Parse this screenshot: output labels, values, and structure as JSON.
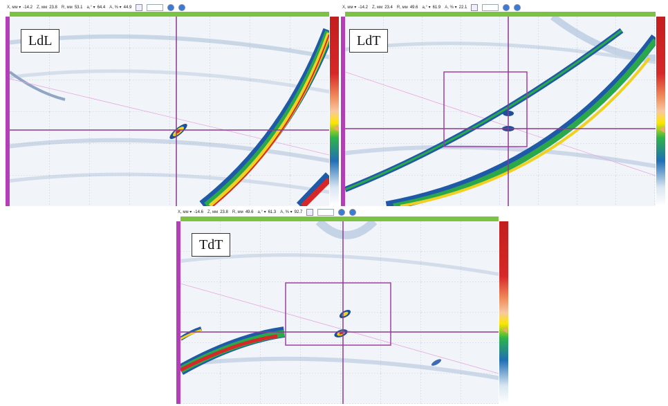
{
  "panels": [
    {
      "id": "ldl",
      "label": "LdL",
      "toolbar": {
        "x_label": "X, мм ▾",
        "x_val": "-14.2",
        "z_label": "Z, мм",
        "z_val": "23.8",
        "r_label": "R, мм",
        "r_val": "53.1",
        "a_label": "a,° ▾",
        "a_val": "64.4",
        "amp_label": "A, % ▾",
        "amp_val": "44.9"
      }
    },
    {
      "id": "ldt",
      "label": "LdT",
      "toolbar": {
        "x_label": "X, мм ▾",
        "x_val": "-14.2",
        "z_label": "Z, мм",
        "z_val": "23.4",
        "r_label": "R, мм",
        "r_val": "49.6",
        "a_label": "a,° ▾",
        "a_val": "61.9",
        "amp_label": "A, % ▾",
        "amp_val": "22.1"
      }
    },
    {
      "id": "tdt",
      "label": "TdT",
      "toolbar": {
        "x_label": "X, мм ▾",
        "x_val": "-14.6",
        "z_label": "Z, мм",
        "z_val": "23.8",
        "r_label": "R, мм",
        "r_val": "49.6",
        "a_label": "a,° ▾",
        "a_val": "61.3",
        "amp_label": "A, % ▾",
        "amp_val": "92.7"
      }
    }
  ],
  "colors": {
    "cursor": "#8b3a8f",
    "ruler_top": "#7cc243",
    "ruler_left": "#b43db8"
  }
}
